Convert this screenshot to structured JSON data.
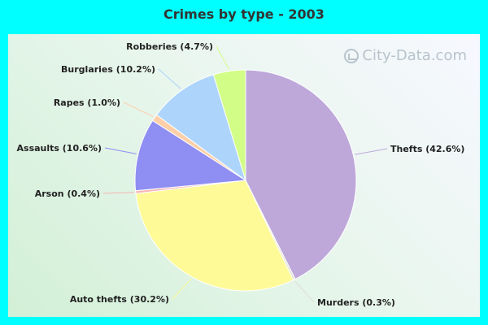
{
  "chart_data": {
    "type": "pie",
    "title": "Crimes by type - 2003",
    "slices": [
      {
        "name": "Thefts",
        "value": 42.6,
        "label": "Thefts (42.6%)",
        "color": "#bea8da"
      },
      {
        "name": "Murders",
        "value": 0.3,
        "label": "Murders (0.3%)",
        "color": "#dde0d0"
      },
      {
        "name": "Auto thefts",
        "value": 30.2,
        "label": "Auto thefts (30.2%)",
        "color": "#fefa98"
      },
      {
        "name": "Arson",
        "value": 0.4,
        "label": "Arson (0.4%)",
        "color": "#f7b5b5"
      },
      {
        "name": "Assaults",
        "value": 10.6,
        "label": "Assaults (10.6%)",
        "color": "#8f8ef2"
      },
      {
        "name": "Rapes",
        "value": 1.0,
        "label": "Rapes (1.0%)",
        "color": "#fdcfa8"
      },
      {
        "name": "Burglaries",
        "value": 10.2,
        "label": "Burglaries (10.2%)",
        "color": "#add5fb"
      },
      {
        "name": "Robberies",
        "value": 4.7,
        "label": "Robberies (4.7%)",
        "color": "#d2fd86"
      }
    ]
  },
  "watermark": {
    "text": "City-Data.com"
  },
  "colors": {
    "page_background": "#00ffff"
  }
}
